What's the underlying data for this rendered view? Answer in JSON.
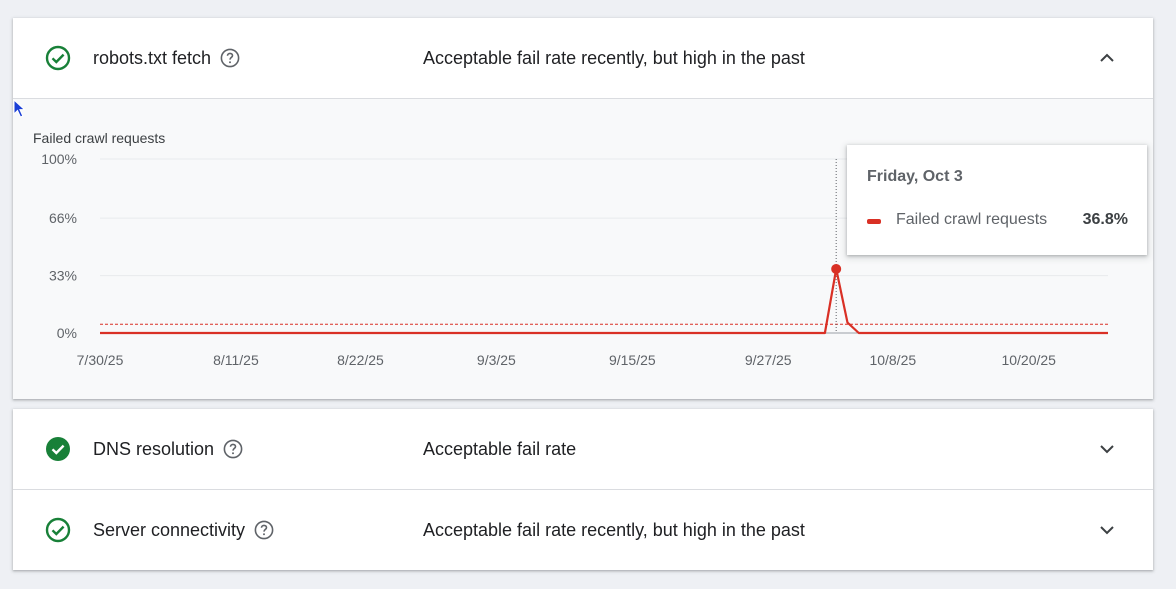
{
  "sections": [
    {
      "title": "robots.txt fetch",
      "status": "Acceptable fail rate recently, but high in the past",
      "expanded": true,
      "icon": "check-circle-outline-icon"
    },
    {
      "title": "DNS resolution",
      "status": "Acceptable fail rate",
      "expanded": false,
      "icon": "check-circle-filled-icon"
    },
    {
      "title": "Server connectivity",
      "status": "Acceptable fail rate recently, but high in the past",
      "expanded": false,
      "icon": "check-circle-outline-icon"
    }
  ],
  "colors": {
    "success": "#188038",
    "series": "#d93025",
    "grid": "#e8eaed",
    "text_secondary": "#5f6368"
  },
  "chart_data": {
    "type": "line",
    "ylabel": "Failed crawl requests",
    "y_ticks": [
      "100%",
      "66%",
      "33%",
      "0%"
    ],
    "y_tick_values": [
      100,
      66,
      33,
      0
    ],
    "ylim": [
      0,
      100
    ],
    "x_tick_labels": [
      "7/30/25",
      "8/11/25",
      "8/22/25",
      "9/3/25",
      "9/15/25",
      "9/27/25",
      "10/8/25",
      "10/20/25"
    ],
    "x_tick_dates": [
      "2025-07-30",
      "2025-08-11",
      "2025-08-22",
      "2025-09-03",
      "2025-09-15",
      "2025-09-27",
      "2025-10-08",
      "2025-10-20"
    ],
    "xlim": [
      "2025-07-30",
      "2025-10-27"
    ],
    "threshold": 5,
    "series": [
      {
        "name": "Failed crawl requests",
        "points": [
          [
            "2025-07-30",
            0
          ],
          [
            "2025-10-02",
            0
          ],
          [
            "2025-10-03",
            36.8
          ],
          [
            "2025-10-04",
            6
          ],
          [
            "2025-10-05",
            0
          ],
          [
            "2025-10-27",
            0
          ]
        ]
      }
    ],
    "highlight": {
      "date": "2025-10-03",
      "value": 36.8
    }
  },
  "tooltip": {
    "date": "Friday, Oct 3",
    "series_name": "Failed crawl requests",
    "value": "36.8%"
  }
}
